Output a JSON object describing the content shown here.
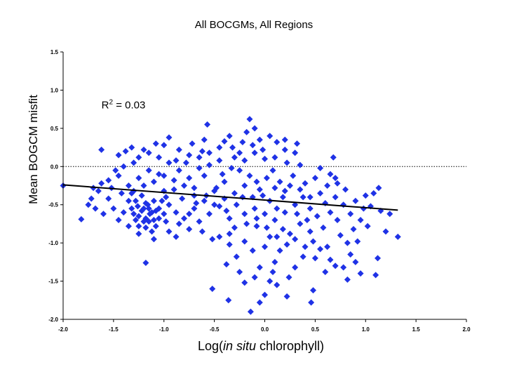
{
  "chart_data": {
    "type": "scatter",
    "title": "All BOCGMs, All Regions",
    "xlabel": "Log(in situ chlorophyll)",
    "xlabel_parts": {
      "prefix": "Log(",
      "italic": "in situ",
      "suffix": " chlorophyll)"
    },
    "ylabel": "Mean BOGCM misfit",
    "xlim": [
      -2.0,
      2.0
    ],
    "ylim": [
      -2.0,
      1.5
    ],
    "x_ticks": [
      "-2.0",
      "-1.5",
      "-1.0",
      "-0.5",
      "0.0",
      "0.5",
      "1.0",
      "1.5",
      "2.0"
    ],
    "y_ticks": [
      "-2.0",
      "-1.5",
      "-1.0",
      "-0.5",
      "0.0",
      "0.5",
      "1.0",
      "1.5"
    ],
    "grid": false,
    "legend": "none",
    "marker": "diamond",
    "marker_color": "#1f32e6",
    "reference_line": {
      "y": 0.0,
      "style": "dotted"
    },
    "trend_line": {
      "x": [
        -2.0,
        1.32
      ],
      "y": [
        -0.24,
        -0.57
      ]
    },
    "annotation": {
      "base": "R",
      "superscript": "2",
      "rest": " = 0.03",
      "x": -1.62,
      "y": 0.76
    },
    "points": [
      [
        -2.0,
        -0.25
      ],
      [
        -1.82,
        -0.69
      ],
      [
        -1.7,
        -0.28
      ],
      [
        -1.62,
        0.22
      ],
      [
        -1.18,
        -1.26
      ],
      [
        -0.52,
        -1.6
      ],
      [
        -0.14,
        -1.9
      ],
      [
        -0.36,
        -1.75
      ],
      [
        -0.05,
        -1.78
      ],
      [
        0.0,
        -1.68
      ],
      [
        0.22,
        -1.7
      ],
      [
        0.48,
        -1.62
      ],
      [
        0.46,
        -1.78
      ],
      [
        0.82,
        -1.48
      ],
      [
        0.95,
        -1.4
      ],
      [
        1.1,
        -1.42
      ],
      [
        1.12,
        -1.2
      ],
      [
        1.24,
        -0.62
      ],
      [
        1.2,
        -0.85
      ],
      [
        1.32,
        -0.92
      ],
      [
        1.15,
        -0.58
      ],
      [
        1.05,
        -0.52
      ],
      [
        1.13,
        -0.28
      ],
      [
        1.08,
        -0.35
      ],
      [
        1.0,
        -0.38
      ],
      [
        0.8,
        -0.3
      ],
      [
        0.72,
        -0.22
      ],
      [
        0.68,
        0.12
      ],
      [
        0.65,
        -0.1
      ],
      [
        0.5,
        -0.15
      ],
      [
        0.55,
        -0.02
      ],
      [
        0.88,
        -0.82
      ],
      [
        0.92,
        -0.98
      ],
      [
        0.72,
        -0.7
      ],
      [
        0.75,
        -0.9
      ],
      [
        0.82,
        -1.0
      ],
      [
        0.85,
        -1.15
      ],
      [
        0.9,
        -1.25
      ],
      [
        0.78,
        -1.32
      ],
      [
        0.7,
        -1.3
      ],
      [
        0.6,
        -1.38
      ],
      [
        0.65,
        -1.22
      ],
      [
        0.55,
        -1.08
      ],
      [
        0.48,
        -0.98
      ],
      [
        0.38,
        -1.18
      ],
      [
        0.3,
        -1.32
      ],
      [
        0.24,
        -1.45
      ],
      [
        0.12,
        -1.55
      ],
      [
        0.05,
        -1.5
      ],
      [
        -0.1,
        -1.45
      ],
      [
        -0.2,
        -1.52
      ],
      [
        -0.25,
        -1.38
      ],
      [
        -0.38,
        -1.28
      ],
      [
        -0.28,
        -1.18
      ],
      [
        -0.35,
        -1.02
      ],
      [
        -0.45,
        -0.92
      ],
      [
        -0.2,
        -0.98
      ],
      [
        -0.05,
        -1.32
      ],
      [
        0.1,
        -1.25
      ],
      [
        0.15,
        -1.1
      ],
      [
        0.05,
        -0.92
      ],
      [
        -0.08,
        -0.78
      ],
      [
        0.18,
        -0.82
      ],
      [
        0.3,
        -0.95
      ],
      [
        -0.33,
        -0.02
      ],
      [
        -0.15,
        0.62
      ],
      [
        -0.57,
        0.55
      ],
      [
        -0.4,
        0.33
      ],
      [
        -0.6,
        0.35
      ],
      [
        -0.75,
        0.15
      ],
      [
        -0.95,
        0.38
      ],
      [
        -1.0,
        0.28
      ],
      [
        -1.05,
        0.12
      ],
      [
        -1.3,
        0.05
      ],
      [
        -1.4,
        0.0
      ],
      [
        -1.45,
        -0.12
      ],
      [
        -1.52,
        -0.28
      ],
      [
        -1.62,
        -0.22
      ],
      [
        -1.55,
        -0.42
      ],
      [
        -1.5,
        -0.55
      ],
      [
        -1.72,
        -0.42
      ],
      [
        -1.68,
        -0.55
      ],
      [
        -1.6,
        -0.62
      ],
      [
        -1.48,
        -0.05
      ],
      [
        -1.38,
        0.2
      ],
      [
        -1.32,
        0.25
      ],
      [
        -1.25,
        0.12
      ],
      [
        -1.15,
        0.18
      ],
      [
        -0.85,
        0.22
      ],
      [
        -0.78,
        0.05
      ],
      [
        -0.65,
        0.12
      ],
      [
        -0.55,
        0.18
      ],
      [
        -0.45,
        0.08
      ],
      [
        -0.32,
        0.25
      ],
      [
        -0.22,
        0.32
      ],
      [
        -0.18,
        0.45
      ],
      [
        -0.1,
        0.5
      ],
      [
        -0.05,
        0.35
      ],
      [
        0.05,
        0.4
      ],
      [
        0.12,
        0.32
      ],
      [
        0.2,
        0.22
      ],
      [
        0.22,
        0.05
      ],
      [
        0.3,
        0.18
      ],
      [
        0.35,
        0.02
      ],
      [
        0.28,
        -0.12
      ],
      [
        0.4,
        -0.22
      ],
      [
        0.2,
        -0.32
      ],
      [
        0.15,
        -0.2
      ],
      [
        0.05,
        -0.45
      ],
      [
        -0.05,
        -0.3
      ],
      [
        -0.15,
        -0.12
      ],
      [
        -0.25,
        -0.05
      ],
      [
        -0.4,
        -0.2
      ],
      [
        -0.5,
        -0.32
      ],
      [
        -0.6,
        -0.12
      ],
      [
        -0.7,
        -0.28
      ],
      [
        -0.82,
        -0.42
      ],
      [
        -0.9,
        -0.18
      ],
      [
        -1.0,
        -0.32
      ],
      [
        -1.1,
        -0.45
      ],
      [
        -1.2,
        -0.55
      ],
      [
        -1.25,
        -0.65
      ],
      [
        -1.15,
        -0.72
      ],
      [
        -1.05,
        -0.68
      ],
      [
        -1.12,
        -0.6
      ],
      [
        -1.18,
        -0.48
      ],
      [
        -1.22,
        -0.38
      ],
      [
        -1.28,
        -0.7
      ],
      [
        -1.32,
        -0.55
      ],
      [
        -1.35,
        -0.45
      ],
      [
        -1.18,
        -0.8
      ],
      [
        -1.08,
        -0.78
      ],
      [
        -1.0,
        -0.62
      ],
      [
        -0.95,
        -0.5
      ],
      [
        -0.98,
        -0.72
      ],
      [
        -1.12,
        -0.85
      ],
      [
        -1.25,
        -0.78
      ],
      [
        -1.3,
        -0.62
      ],
      [
        -1.15,
        -0.55
      ],
      [
        -1.05,
        -0.55
      ],
      [
        -0.88,
        -0.6
      ],
      [
        -0.8,
        -0.68
      ],
      [
        -0.7,
        -0.55
      ],
      [
        -0.65,
        -0.72
      ],
      [
        -0.55,
        -0.62
      ],
      [
        -0.45,
        -0.52
      ],
      [
        -0.35,
        -0.68
      ],
      [
        -0.3,
        -0.8
      ],
      [
        -0.2,
        -0.62
      ],
      [
        -0.1,
        -0.55
      ],
      [
        0.0,
        -0.62
      ],
      [
        0.1,
        -0.7
      ],
      [
        0.2,
        -0.6
      ],
      [
        0.3,
        -0.5
      ],
      [
        0.38,
        -0.4
      ],
      [
        0.45,
        -0.55
      ],
      [
        0.52,
        -0.65
      ],
      [
        0.6,
        -0.48
      ],
      [
        0.65,
        -0.6
      ],
      [
        0.7,
        -0.4
      ],
      [
        0.58,
        -0.8
      ],
      [
        0.45,
        -0.85
      ],
      [
        0.35,
        -0.75
      ],
      [
        0.25,
        -0.88
      ],
      [
        0.4,
        -1.05
      ],
      [
        0.5,
        -1.2
      ],
      [
        0.62,
        -1.05
      ],
      [
        0.0,
        -1.05
      ],
      [
        -0.12,
        -1.1
      ],
      [
        0.08,
        -1.38
      ],
      [
        -0.62,
        -0.85
      ],
      [
        -0.52,
        -0.95
      ],
      [
        -0.75,
        -0.82
      ],
      [
        -0.88,
        -0.92
      ],
      [
        -0.35,
        -0.88
      ],
      [
        -0.22,
        -0.4
      ],
      [
        -0.08,
        -0.2
      ],
      [
        0.02,
        -0.15
      ],
      [
        0.08,
        -0.05
      ],
      [
        0.0,
        0.1
      ],
      [
        -0.1,
        0.18
      ],
      [
        -0.2,
        0.08
      ],
      [
        -0.3,
        0.12
      ],
      [
        -0.42,
        -0.1
      ],
      [
        -0.55,
        0.02
      ],
      [
        -0.65,
        -0.02
      ],
      [
        -0.75,
        -0.15
      ],
      [
        -0.85,
        -0.05
      ],
      [
        -0.95,
        0.05
      ],
      [
        -1.05,
        -0.1
      ],
      [
        -1.15,
        -0.05
      ],
      [
        -1.25,
        -0.15
      ],
      [
        -1.35,
        -0.25
      ],
      [
        -1.42,
        -0.35
      ],
      [
        -1.3,
        -0.32
      ],
      [
        -1.2,
        -0.25
      ],
      [
        -1.1,
        -0.2
      ],
      [
        -1.0,
        -0.12
      ],
      [
        -0.9,
        -0.3
      ],
      [
        -0.8,
        -0.25
      ],
      [
        -0.7,
        -0.38
      ],
      [
        -0.6,
        -0.45
      ],
      [
        -0.5,
        -0.5
      ],
      [
        -0.4,
        -0.42
      ],
      [
        -0.3,
        -0.35
      ],
      [
        -0.2,
        -0.25
      ],
      [
        -0.12,
        -0.4
      ],
      [
        -0.02,
        -0.38
      ],
      [
        0.1,
        -0.28
      ],
      [
        0.18,
        -0.4
      ],
      [
        0.25,
        -0.25
      ],
      [
        0.35,
        -0.3
      ],
      [
        0.45,
        -0.4
      ],
      [
        0.55,
        -0.35
      ],
      [
        0.62,
        -0.25
      ],
      [
        0.7,
        -0.15
      ],
      [
        0.78,
        -0.5
      ],
      [
        0.85,
        -0.62
      ],
      [
        0.95,
        -0.7
      ],
      [
        0.9,
        -0.45
      ],
      [
        0.98,
        -0.55
      ],
      [
        1.02,
        -0.78
      ],
      [
        -0.12,
        0.28
      ],
      [
        -0.02,
        0.22
      ],
      [
        0.1,
        0.12
      ],
      [
        0.2,
        0.35
      ],
      [
        0.32,
        0.3
      ],
      [
        -0.25,
        0.18
      ],
      [
        -0.35,
        0.4
      ],
      [
        -0.45,
        0.25
      ],
      [
        -0.62,
        0.2
      ],
      [
        -0.72,
        0.3
      ],
      [
        -0.88,
        0.08
      ],
      [
        -1.08,
        0.3
      ],
      [
        -1.2,
        0.22
      ],
      [
        -1.45,
        0.15
      ],
      [
        -1.55,
        -0.18
      ],
      [
        -1.65,
        -0.32
      ],
      [
        -1.75,
        -0.5
      ],
      [
        -1.4,
        -0.6
      ],
      [
        -1.45,
        -0.7
      ],
      [
        -1.35,
        -0.78
      ],
      [
        -1.25,
        -0.88
      ],
      [
        -1.1,
        -0.95
      ],
      [
        -0.95,
        -0.85
      ],
      [
        -0.85,
        -0.75
      ],
      [
        -0.75,
        -0.62
      ],
      [
        -0.68,
        -0.48
      ],
      [
        -0.58,
        -0.38
      ],
      [
        -0.48,
        -0.28
      ],
      [
        -0.38,
        -0.58
      ],
      [
        -0.28,
        -0.5
      ],
      [
        -0.18,
        -0.75
      ],
      [
        -0.08,
        -0.68
      ],
      [
        0.02,
        -0.8
      ],
      [
        0.12,
        -0.92
      ],
      [
        0.22,
        -1.02
      ],
      [
        0.32,
        -0.62
      ],
      [
        0.42,
        -0.7
      ],
      [
        0.12,
        -0.55
      ],
      [
        -1.22,
        -0.58
      ],
      [
        -1.18,
        -0.68
      ],
      [
        -1.14,
        -0.62
      ],
      [
        -1.1,
        -0.7
      ],
      [
        -1.16,
        -0.5
      ],
      [
        -1.2,
        -0.72
      ],
      [
        -1.26,
        -0.52
      ],
      [
        -1.08,
        -0.58
      ],
      [
        -1.02,
        -0.45
      ],
      [
        -0.98,
        -0.4
      ],
      [
        -1.28,
        -0.45
      ],
      [
        -1.32,
        -0.35
      ]
    ]
  }
}
